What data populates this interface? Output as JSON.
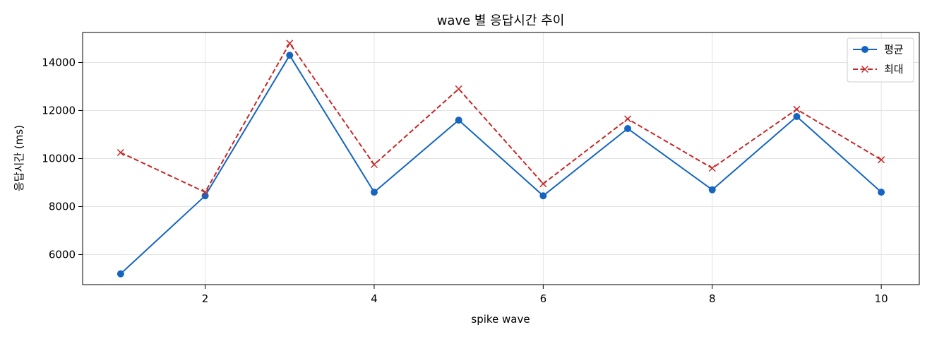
{
  "chart_data": {
    "type": "line",
    "title": "wave 별 응답시간 추이",
    "xlabel": "spike wave",
    "ylabel": "응답시간 (ms)",
    "x": [
      1,
      2,
      3,
      4,
      5,
      6,
      7,
      8,
      9,
      10
    ],
    "xlim": [
      0.55,
      10.45
    ],
    "ylim": [
      4750,
      15250
    ],
    "xticks": [
      2,
      4,
      6,
      8,
      10
    ],
    "yticks": [
      6000,
      8000,
      10000,
      12000,
      14000
    ],
    "grid": true,
    "legend_position": "top-right",
    "series": [
      {
        "name": "평균",
        "color": "#1565c0",
        "marker": "circle",
        "linestyle": "solid",
        "values": [
          5200,
          8450,
          14300,
          8600,
          11600,
          8450,
          11250,
          8700,
          11750,
          8600
        ]
      },
      {
        "name": "최대",
        "color": "#c62828",
        "marker": "x",
        "linestyle": "dashed",
        "values": [
          10250,
          8600,
          14800,
          9750,
          12900,
          8950,
          11650,
          9600,
          12050,
          9950
        ]
      }
    ]
  }
}
